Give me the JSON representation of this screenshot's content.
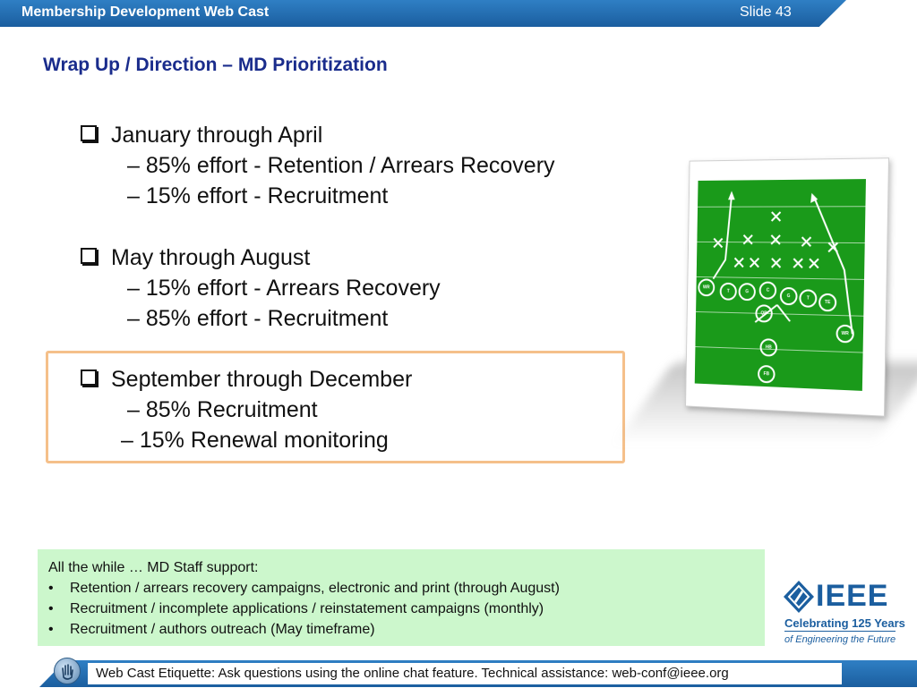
{
  "header": {
    "title": "Membership Development Web Cast",
    "slide_number": "Slide 43"
  },
  "slide_title": "Wrap Up / Direction – MD Prioritization",
  "sections": [
    {
      "heading": "January through April",
      "items": [
        "–  85% effort - Retention / Arrears Recovery",
        "–  15% effort - Recruitment"
      ]
    },
    {
      "heading": "May through August",
      "items": [
        "–  15% effort - Arrears Recovery",
        "–  85% effort - Recruitment"
      ]
    },
    {
      "heading": "September through December",
      "items": [
        "–  85% Recruitment",
        "– 15% Renewal monitoring"
      ]
    }
  ],
  "support_box": {
    "intro": "All the while … MD Staff support:",
    "bullets": [
      "Retention / arrears recovery campaigns, electronic and print (through August)",
      "Recruitment / incomplete applications / reinstatement campaigns (monthly)",
      "Recruitment / authors outreach (May timeframe)"
    ],
    "bullet_symbol": "•"
  },
  "logo": {
    "wordmark": "IEEE",
    "tagline": "Celebrating 125 Years",
    "subtagline": "of Engineering the Future"
  },
  "playbook": {
    "labels": [
      "WR",
      "T",
      "G",
      "C",
      "G",
      "T",
      "TE",
      "QB",
      "HB",
      "FB",
      "WR"
    ]
  },
  "footer": {
    "text": "Web Cast Etiquette:  Ask questions using the online chat feature.  Technical assistance: web-conf@ieee.org"
  },
  "colors": {
    "header_blue": "#1b5e9f",
    "title_navy": "#1a2c8c",
    "highlight_frame": "#f5c08a",
    "support_bg": "#ccf7cc",
    "field_green": "#1a9a1a"
  }
}
